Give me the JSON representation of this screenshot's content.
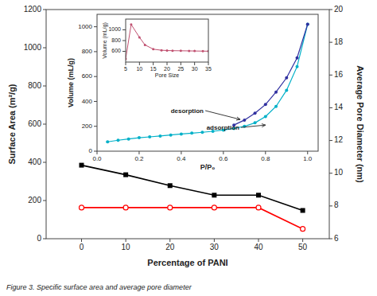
{
  "chart_data": [
    {
      "type": "line",
      "title": "Figure 3. Specific surface area and average pore diameter",
      "xlabel": "Percentage of PANI",
      "ylabel": "Surface Area (m²/g)",
      "y2label": "Average Pore Diameter (nm)",
      "x": [
        0,
        10,
        20,
        30,
        40,
        50
      ],
      "xlim": [
        -8,
        56
      ],
      "xticks": [
        0,
        10,
        20,
        30,
        40,
        50
      ],
      "ylim": [
        0,
        1200
      ],
      "yticks": [
        0,
        200,
        400,
        600,
        800,
        1000,
        1200
      ],
      "y2lim": [
        6,
        20
      ],
      "y2ticks": [
        6,
        8,
        10,
        12,
        14,
        16,
        18,
        20
      ],
      "grid": false,
      "series": [
        {
          "color": "black",
          "marker": "square",
          "values": [
            385,
            335,
            278,
            228,
            228,
            148
          ]
        },
        {
          "color": "red",
          "marker": "circle-open",
          "axis": "y2",
          "values": [
            7.9,
            7.9,
            7.9,
            7.9,
            7.9,
            6.6
          ]
        }
      ]
    },
    {
      "type": "line",
      "xlabel": "P/P₀",
      "ylabel": "Volume (mL/g)",
      "xlim": [
        0,
        1.05
      ],
      "xticks": [
        {
          "value": 0,
          "label": "0.0"
        },
        0.2,
        0.4,
        0.6,
        0.8,
        {
          "value": 1,
          "label": "1.0"
        }
      ],
      "ylim": [
        0,
        1100
      ],
      "yticks": [
        0,
        200,
        400,
        600,
        800,
        1000
      ],
      "grid": false,
      "series": [
        {
          "color": "#00b0c8",
          "marker": "circle",
          "x": [
            0.05,
            0.1,
            0.15,
            0.2,
            0.25,
            0.3,
            0.35,
            0.4,
            0.45,
            0.5,
            0.55,
            0.6,
            0.65,
            0.7,
            0.75,
            0.8,
            0.85,
            0.9,
            0.95,
            1.0
          ],
          "values": [
            75,
            88,
            98,
            108,
            115,
            122,
            130,
            138,
            145,
            152,
            160,
            170,
            183,
            200,
            228,
            278,
            360,
            490,
            680,
            1020
          ]
        },
        {
          "color": "#3030a0",
          "marker": "circle",
          "x": [
            0.65,
            0.7,
            0.75,
            0.8,
            0.85,
            0.9,
            0.95,
            1.0
          ],
          "values": [
            210,
            250,
            305,
            375,
            475,
            590,
            750,
            1020
          ]
        }
      ],
      "annotations": [
        {
          "text": "desorption",
          "x": 0.68,
          "y": 255,
          "text_x": 0.35,
          "text_y": 310
        },
        {
          "text": "adsorption",
          "x": 0.8,
          "y": 210,
          "text_x": 0.52,
          "text_y": 175
        }
      ]
    },
    {
      "type": "line",
      "xlabel": "Pore Size",
      "ylabel": "Volume (mL/g)",
      "x": [
        5,
        7,
        10,
        12,
        15,
        18,
        20,
        22,
        25,
        28,
        30,
        33,
        35
      ],
      "xlim": [
        5,
        35
      ],
      "xticks": [
        5,
        10,
        15,
        20,
        25,
        30,
        35
      ],
      "ylim": [
        400,
        1200
      ],
      "yticks": [
        600,
        800,
        1000
      ],
      "grid": false,
      "series": [
        {
          "color": "#c05070",
          "marker": "circle",
          "values": [
            460,
            1100,
            860,
            720,
            640,
            620,
            615,
            612,
            610,
            608,
            606,
            604,
            602
          ]
        }
      ]
    }
  ]
}
